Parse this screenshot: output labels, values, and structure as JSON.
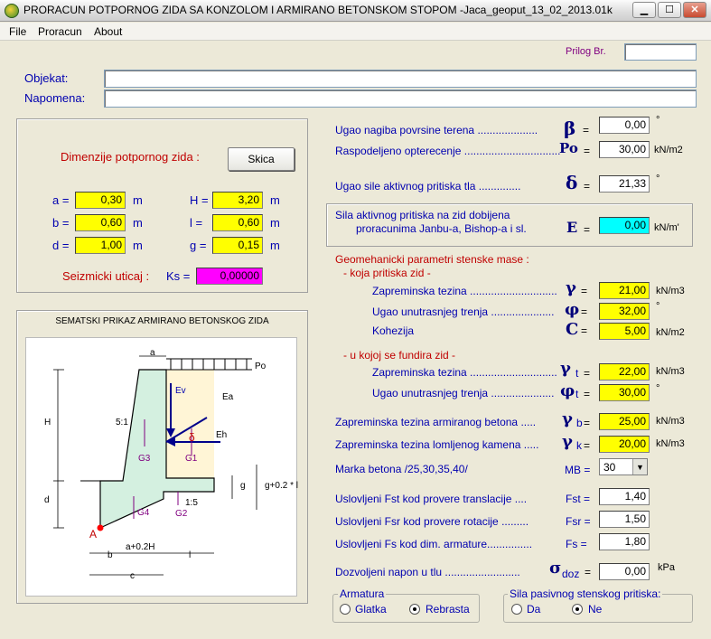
{
  "window": {
    "title": "PRORACUN POTPORNOG ZIDA SA KONZOLOM I ARMIRANO BETONSKOM STOPOM -",
    "file": "Jaca_geoput_13_02_2013.01k"
  },
  "menu": [
    "File",
    "Proracun",
    "About"
  ],
  "header": {
    "prilog_label": "Prilog Br.",
    "prilog_value": "",
    "objekat_label": "Objekat:",
    "objekat_value": "",
    "napomena_label": "Napomena:",
    "napomena_value": ""
  },
  "dimensions": {
    "title": "Dimenzije potpornog zida :",
    "skica_button": "Skica",
    "a_label": "a =",
    "a": "0,30",
    "b_label": "b =",
    "b": "0,60",
    "d_label": "d =",
    "d": "1,00",
    "H_label": "H =",
    "H": "3,20",
    "l_label": "l =",
    "l": "0,60",
    "g_label": "g =",
    "g": "0,15",
    "unit": "m",
    "seismic_label": "Seizmicki uticaj :",
    "ks_label": "Ks =",
    "ks": "0,00000"
  },
  "diagram": {
    "title": "SEMATSKI PRIKAZ ARMIRANO BETONSKOG ZIDA",
    "labels": {
      "a": "a",
      "Po": "Po",
      "H": "H",
      "slope": "5:1",
      "Ev": "Ev",
      "Ea": "Ea",
      "Eh": "Eh",
      "delta": "δ",
      "G3": "G3",
      "G1": "G1",
      "G2": "G2",
      "G4": "G4",
      "d": "d",
      "g": "g",
      "g_expr": "g+0.2 * l",
      "ratio": "1:5",
      "A": "A",
      "b": "b",
      "a_expr": "a+0.2H",
      "l": "l",
      "c": "c"
    }
  },
  "right": {
    "beta_label": "Ugao nagiba povrsine terena ....................",
    "beta_sym": "β",
    "beta": "0,00",
    "beta_unit": "°",
    "po_label": "Raspodeljeno opterecenje ................................",
    "po_sym": "Po",
    "po": "30,00",
    "po_unit": "kN/m2",
    "delta_label": "Ugao sile aktivnog pritiska tla ..............",
    "delta_sym": "δ",
    "delta": "21,33",
    "delta_unit": "°",
    "E_label1": "Sila aktivnog pritiska na zid dobijena",
    "E_label2": "proracunima Janbu-a, Bishop-a i sl.",
    "E_sym": "E",
    "E": "0,00",
    "E_unit": "kN/m'",
    "geo_title": "Geomehanicki parametri stenske mase :",
    "geo_sub1": "- koja pritiska zid -",
    "gamma_label": "Zapreminska tezina .............................",
    "gamma_sym": "γ",
    "gamma": "21,00",
    "gamma_unit": "kN/m3",
    "phi_label": "Ugao unutrasnjeg trenja .....................",
    "phi_sym": "φ",
    "phi": "32,00",
    "phi_unit": "°",
    "c_label": "Kohezija",
    "c_sym": "C",
    "c": "5,00",
    "c_unit": "kN/m2",
    "geo_sub2": "- u kojoj se fundira zid -",
    "gamma_t_label": "Zapreminska tezina .............................",
    "gamma_t_sym": "γ",
    "gamma_t_sub": "t",
    "gamma_t": "22,00",
    "gamma_t_unit": "kN/m3",
    "phi_t_label": "Ugao unutrasnjeg trenja .....................",
    "phi_t_sym": "φ",
    "phi_t_sub": "t",
    "phi_t": "30,00",
    "phi_t_unit": "°",
    "gamma_b_label": "Zapreminska tezina armiranog betona .....",
    "gamma_b_sym": "γ",
    "gamma_b_sub": "b",
    "gamma_b": "25,00",
    "gamma_b_unit": "kN/m3",
    "gamma_k_label": "Zapreminska tezina lomljenog kamena .....",
    "gamma_k_sym": "γ",
    "gamma_k_sub": "k",
    "gamma_k": "20,00",
    "gamma_k_unit": "kN/m3",
    "mb_label": "Marka betona   /25,30,35,40/",
    "mb_sym": "MB =",
    "mb": "30",
    "fst_label": "Uslovljeni Fst  kod provere translacije ....",
    "fst_sym": "Fst =",
    "fst": "1,40",
    "fsr_label": "Uslovljeni Fsr  kod provere rotacije .........",
    "fsr_sym": "Fsr =",
    "fsr": "1,50",
    "fs_label": "Uslovljeni Fs  kod dim. armature...............",
    "fs_sym": "Fs =",
    "fs": "1,80",
    "sigma_label": "Dozvoljeni napon u tlu .........................",
    "sigma_sym": "σ",
    "sigma_sub": "doz",
    "sigma_eq": "=",
    "sigma": "0,00",
    "sigma_unit": "kPa"
  },
  "armatura": {
    "title": "Armatura",
    "options": [
      "Glatka",
      "Rebrasta"
    ],
    "selected": "Rebrasta"
  },
  "pasivni": {
    "title": "Sila pasivnog stenskog pritiska:",
    "options": [
      "Da",
      "Ne"
    ],
    "selected": "Ne"
  }
}
